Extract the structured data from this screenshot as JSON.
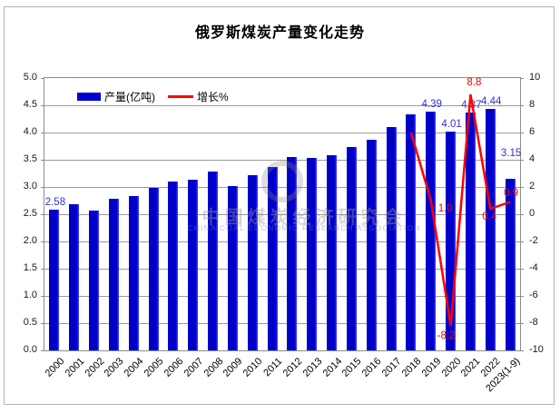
{
  "title": "俄罗斯煤炭产量变化走势",
  "legend": {
    "items": [
      {
        "label": "产量(亿吨)",
        "color": "#0000cc"
      },
      {
        "label": "增长%",
        "color": "#ff0000"
      }
    ]
  },
  "watermark": {
    "cn": "中国煤炭经济研究会",
    "en": "CHINA COAL ECONOMIC RESEARCH ASSOCIATION"
  },
  "chart_data": {
    "type": "bar",
    "subtype": "combo-bar-line-dual-axis",
    "title": "俄罗斯煤炭产量变化走势",
    "categories": [
      "2000",
      "2001",
      "2002",
      "2003",
      "2004",
      "2005",
      "2006",
      "2007",
      "2008",
      "2009",
      "2010",
      "2011",
      "2012",
      "2013",
      "2014",
      "2015",
      "2016",
      "2017",
      "2018",
      "2019",
      "2020",
      "2021",
      "2022",
      "2023(1-9)"
    ],
    "series": [
      {
        "name": "产量(亿吨)",
        "type": "bar",
        "axis": "left",
        "color": "#0000cc",
        "values": [
          2.58,
          2.69,
          2.56,
          2.78,
          2.83,
          2.99,
          3.1,
          3.14,
          3.28,
          3.01,
          3.22,
          3.36,
          3.55,
          3.53,
          3.58,
          3.73,
          3.87,
          4.1,
          4.33,
          4.39,
          4.01,
          4.37,
          4.44,
          3.15
        ],
        "labels": [
          "2.58",
          "",
          "",
          "",
          "",
          "",
          "",
          "",
          "",
          "",
          "",
          "",
          "",
          "",
          "",
          "",
          "",
          "",
          "",
          "4.39",
          "4.01",
          "4.37",
          "4.44",
          "3.15"
        ],
        "label_color": "#3333cc"
      },
      {
        "name": "增长%",
        "type": "line",
        "axis": "right",
        "color": "#ff0000",
        "values": [
          null,
          null,
          null,
          null,
          null,
          null,
          null,
          null,
          null,
          null,
          null,
          null,
          null,
          null,
          null,
          null,
          null,
          null,
          6.0,
          1.0,
          -8.2,
          8.8,
          0.4,
          0.9
        ],
        "labels": [
          "",
          "",
          "",
          "",
          "",
          "",
          "",
          "",
          "",
          "",
          "",
          "",
          "",
          "",
          "",
          "",
          "",
          "",
          "",
          "1.0",
          "-8.2",
          "8.8",
          "0.4",
          "0.9"
        ],
        "label_color": "#ff0000"
      }
    ],
    "left_axis": {
      "min": 0,
      "max": 5,
      "step": 0.5,
      "ticks": [
        "5.0",
        "4.5",
        "4.0",
        "3.5",
        "3.0",
        "2.5",
        "2.0",
        "1.5",
        "1.0",
        "0.5",
        "0.0"
      ]
    },
    "right_axis": {
      "min": -10,
      "max": 10,
      "step": 2,
      "ticks": [
        "10",
        "8",
        "6",
        "4",
        "2",
        "0",
        "-2",
        "-4",
        "-6",
        "-8",
        "-10"
      ]
    },
    "grid": true,
    "legend_position": "inside-top-left"
  }
}
